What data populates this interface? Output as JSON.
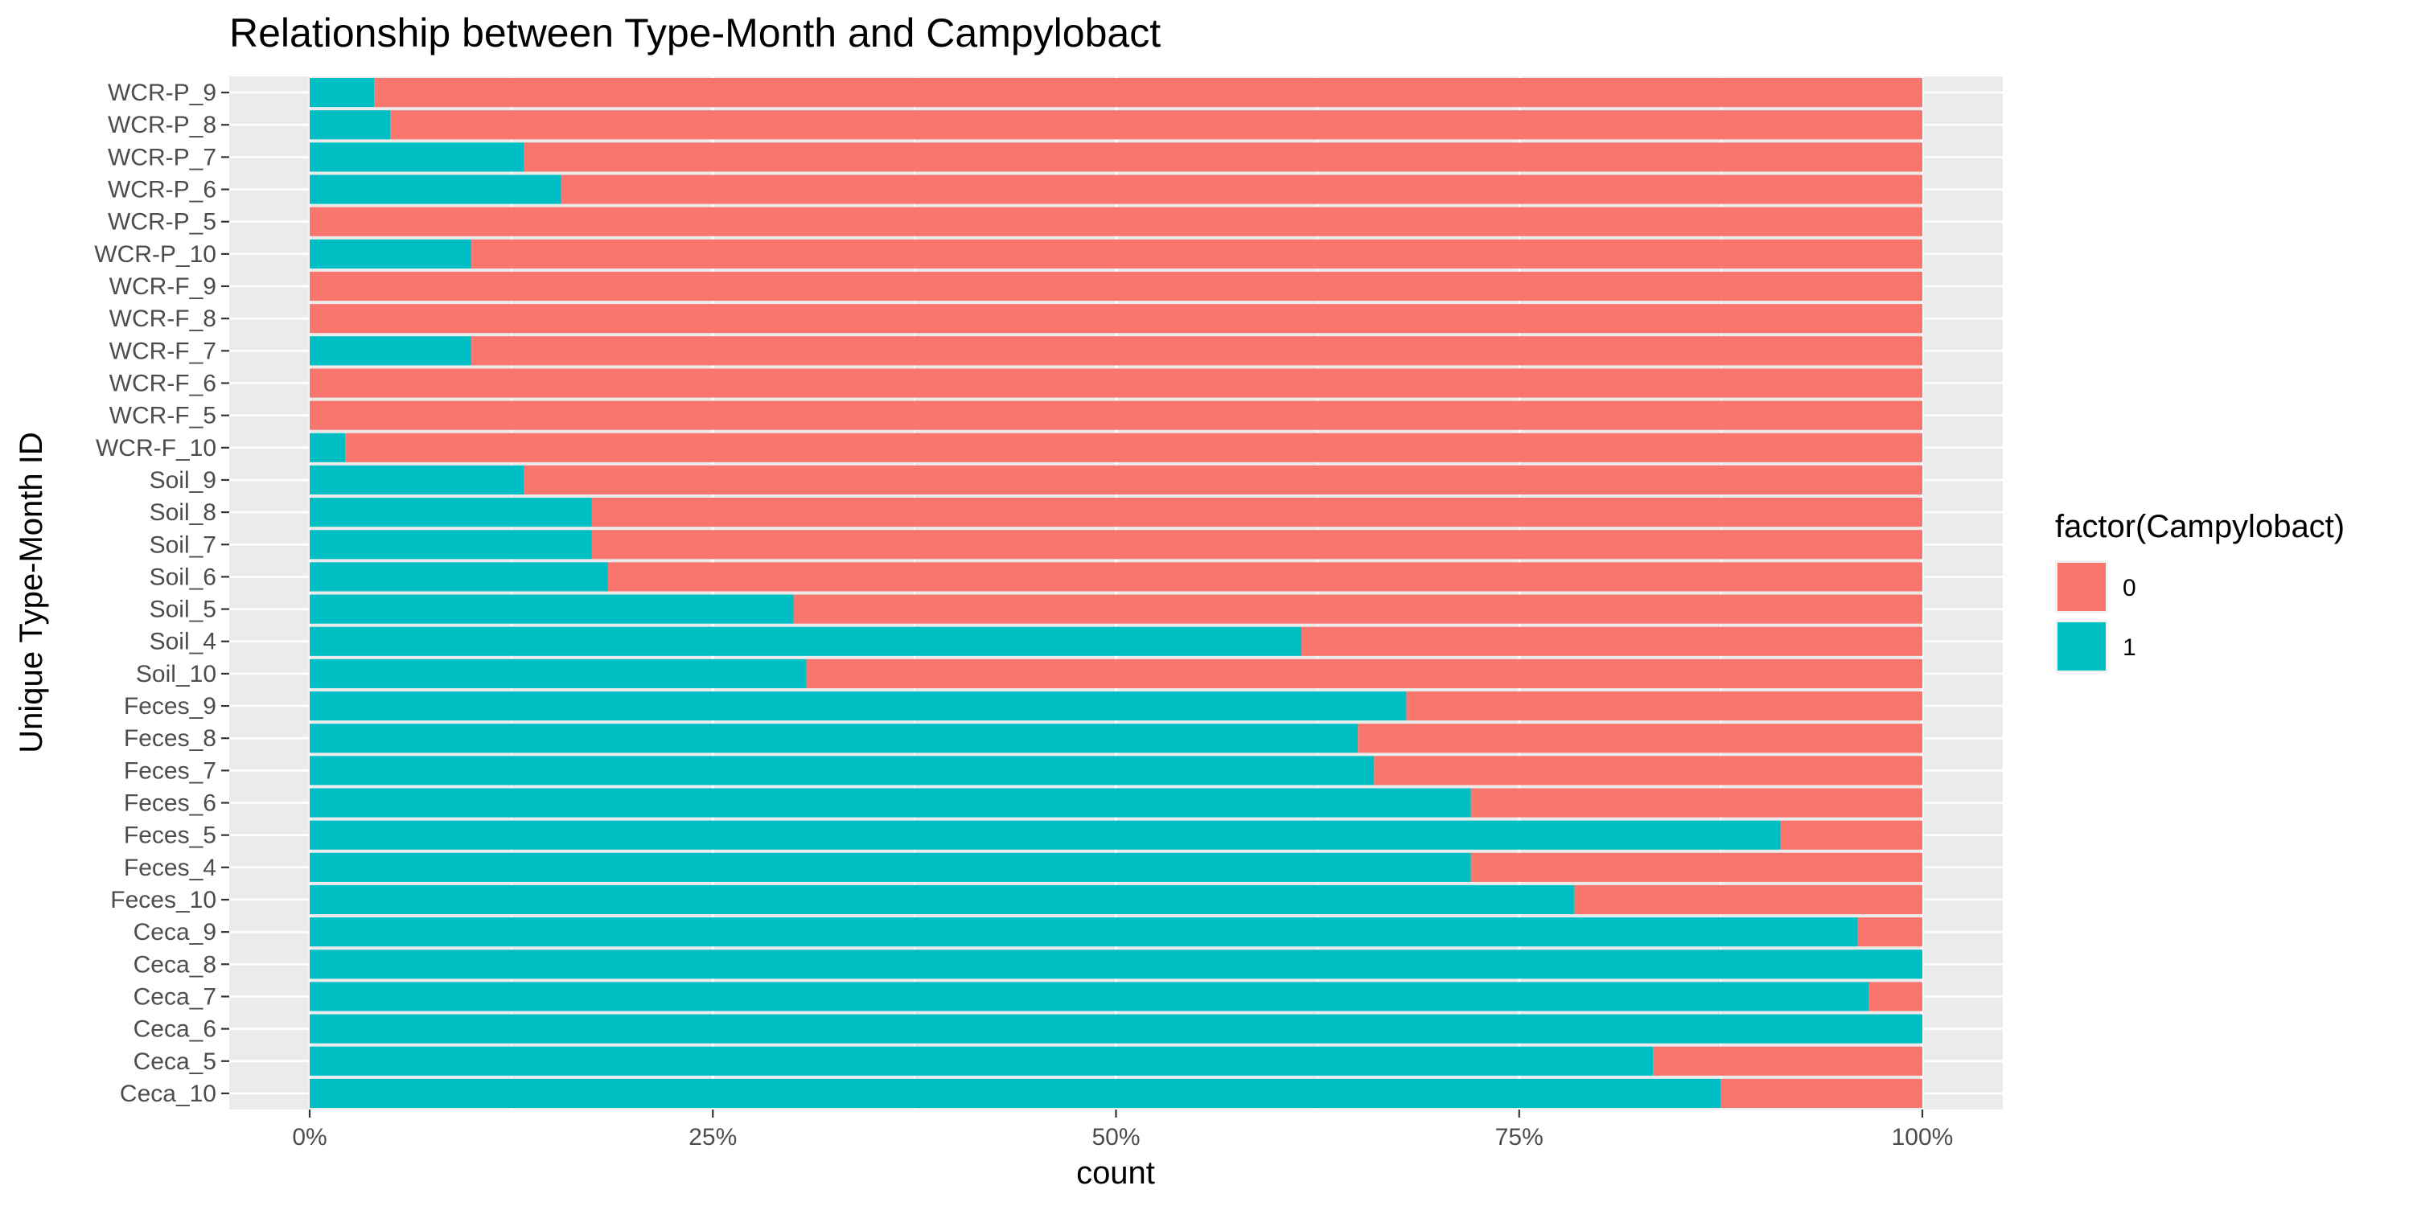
{
  "chart_data": {
    "type": "bar",
    "orientation": "horizontal",
    "stacking": "percent",
    "title": "Relationship between Type-Month and Campylobact",
    "xlabel": "count",
    "ylabel": "Unique Type-Month ID",
    "xlim": [
      0,
      1
    ],
    "x_ticks": [
      "0%",
      "25%",
      "50%",
      "75%",
      "100%"
    ],
    "grid": true,
    "legend": {
      "title": "factor(Campylobact)",
      "position": "right"
    },
    "categories": [
      "Ceca_10",
      "Ceca_5",
      "Ceca_6",
      "Ceca_7",
      "Ceca_8",
      "Ceca_9",
      "Feces_10",
      "Feces_4",
      "Feces_5",
      "Feces_6",
      "Feces_7",
      "Feces_8",
      "Feces_9",
      "Soil_10",
      "Soil_4",
      "Soil_5",
      "Soil_6",
      "Soil_7",
      "Soil_8",
      "Soil_9",
      "WCR-F_10",
      "WCR-F_5",
      "WCR-F_6",
      "WCR-F_7",
      "WCR-F_8",
      "WCR-F_9",
      "WCR-P_10",
      "WCR-P_5",
      "WCR-P_6",
      "WCR-P_7",
      "WCR-P_8",
      "WCR-P_9"
    ],
    "series": [
      {
        "name": "0",
        "color": "#F8766D",
        "values": [
          0.125,
          0.167,
          0.0,
          0.033,
          0.0,
          0.04,
          0.216,
          0.28,
          0.088,
          0.28,
          0.34,
          0.35,
          0.32,
          0.692,
          0.385,
          0.7,
          0.815,
          0.825,
          0.825,
          0.867,
          0.978,
          1.0,
          1.0,
          0.9,
          1.0,
          1.0,
          0.9,
          1.0,
          0.844,
          0.867,
          0.95,
          0.96
        ]
      },
      {
        "name": "1",
        "color": "#00BFC4",
        "values": [
          0.875,
          0.833,
          1.0,
          0.967,
          1.0,
          0.96,
          0.784,
          0.72,
          0.912,
          0.72,
          0.66,
          0.65,
          0.68,
          0.308,
          0.615,
          0.3,
          0.185,
          0.175,
          0.175,
          0.133,
          0.022,
          0.0,
          0.0,
          0.1,
          0.0,
          0.0,
          0.1,
          0.0,
          0.156,
          0.133,
          0.05,
          0.04
        ]
      }
    ]
  }
}
